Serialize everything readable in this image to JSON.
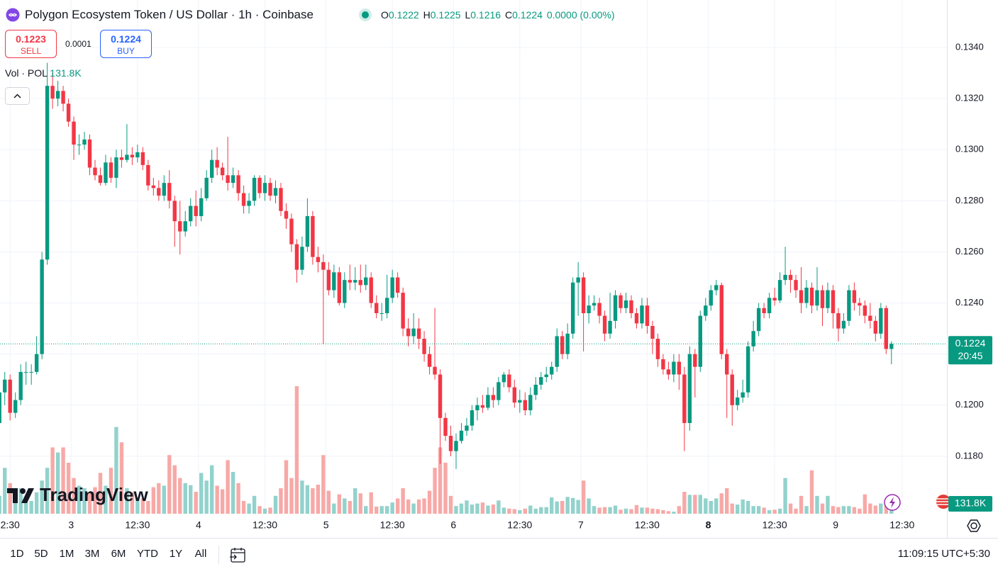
{
  "header": {
    "title": "Polygon Ecosystem Token / US Dollar · 1h · Coinbase",
    "ohlc_letters": [
      "O",
      "H",
      "L",
      "C"
    ],
    "change": "0.0000 (0.00%)"
  },
  "trade": {
    "sell_price": 0.1223,
    "sell_label": "SELL",
    "spread": 0.0001,
    "buy_price": 0.1224,
    "buy_label": "BUY"
  },
  "chart_data": {
    "type": "candlestick",
    "open": [
      0.1193,
      0.1205,
      0.121,
      0.1197,
      0.1202,
      0.1213,
      0.1213,
      0.1213,
      0.122,
      0.1257,
      0.1325,
      0.132,
      0.1323,
      0.1318,
      0.1311,
      0.1302,
      0.1302,
      0.1304,
      0.1293,
      0.129,
      0.1287,
      0.1295,
      0.1289,
      0.1297,
      0.1296,
      0.1298,
      0.1297,
      0.1299,
      0.1294,
      0.1286,
      0.1285,
      0.1282,
      0.1287,
      0.128,
      0.1272,
      0.1268,
      0.1272,
      0.1278,
      0.1274,
      0.1281,
      0.1289,
      0.1296,
      0.1293,
      0.129,
      0.1287,
      0.129,
      0.1283,
      0.1278,
      0.128,
      0.1289,
      0.1283,
      0.1287,
      0.1282,
      0.1285,
      0.1276,
      0.1273,
      0.1263,
      0.1253,
      0.1262,
      0.1274,
      0.1258,
      0.1256,
      0.1253,
      0.1245,
      0.1252,
      0.124,
      0.1249,
      0.1248,
      0.1249,
      0.1247,
      0.125,
      0.124,
      0.1236,
      0.1236,
      0.1242,
      0.125,
      0.1244,
      0.123,
      0.1227,
      0.123,
      0.1226,
      0.122,
      0.1215,
      0.1212,
      0.1195,
      0.1188,
      0.1182,
      0.1186,
      0.119,
      0.1192,
      0.1198,
      0.12,
      0.1199,
      0.1204,
      0.1202,
      0.1209,
      0.1212,
      0.1207,
      0.1201,
      0.1202,
      0.1198,
      0.1204,
      0.1208,
      0.1211,
      0.1212,
      0.1215,
      0.1227,
      0.122,
      0.1228,
      0.1248,
      0.125,
      0.1236,
      0.1239,
      0.124,
      0.1235,
      0.1228,
      0.1233,
      0.1243,
      0.1238,
      0.1241,
      0.1236,
      0.1232,
      0.1239,
      0.1231,
      0.1226,
      0.1218,
      0.1214,
      0.1212,
      0.1217,
      0.1212,
      0.1193,
      0.122,
      0.1215,
      0.1235,
      0.1239,
      0.1245,
      0.1247,
      0.122,
      0.1212,
      0.12,
      0.1203,
      0.1205,
      0.1223,
      0.1229,
      0.1238,
      0.1236,
      0.1242,
      0.1241,
      0.1249,
      0.1251,
      0.1249,
      0.1245,
      0.124,
      0.1246,
      0.1239,
      0.1245,
      0.1238,
      0.1245,
      0.1236,
      0.123,
      0.1233,
      0.1245,
      0.124,
      0.1239,
      0.1235,
      0.1233,
      0.1228,
      0.1238,
      0.1222
    ],
    "high": [
      0.121,
      0.1213,
      0.1212,
      0.1205,
      0.1216,
      0.1217,
      0.1216,
      0.1227,
      0.126,
      0.1334,
      0.133,
      0.1327,
      0.1325,
      0.132,
      0.1313,
      0.1306,
      0.1307,
      0.1306,
      0.1296,
      0.1293,
      0.1298,
      0.1297,
      0.13,
      0.13,
      0.131,
      0.1301,
      0.1302,
      0.1301,
      0.1296,
      0.1289,
      0.1288,
      0.129,
      0.1292,
      0.1282,
      0.128,
      0.1276,
      0.1281,
      0.1284,
      0.1285,
      0.1292,
      0.13,
      0.1301,
      0.1295,
      0.1305,
      0.1293,
      0.1292,
      0.1286,
      0.1283,
      0.129,
      0.129,
      0.129,
      0.1289,
      0.1288,
      0.1287,
      0.1279,
      0.1275,
      0.1265,
      0.1266,
      0.1281,
      0.1276,
      0.1262,
      0.1259,
      0.1256,
      0.1255,
      0.1254,
      0.1252,
      0.1255,
      0.1254,
      0.1255,
      0.1255,
      0.1252,
      0.1243,
      0.124,
      0.1251,
      0.1253,
      0.1252,
      0.1246,
      0.1234,
      0.1236,
      0.1234,
      0.1229,
      0.1223,
      0.1238,
      0.1214,
      0.1197,
      0.1192,
      0.1189,
      0.1193,
      0.1195,
      0.12,
      0.1203,
      0.1204,
      0.1207,
      0.1207,
      0.1211,
      0.1213,
      0.1214,
      0.121,
      0.1206,
      0.1205,
      0.1207,
      0.1211,
      0.1213,
      0.1215,
      0.1217,
      0.123,
      0.1229,
      0.1232,
      0.125,
      0.1256,
      0.1252,
      0.1243,
      0.1243,
      0.1242,
      0.1237,
      0.1244,
      0.1245,
      0.1244,
      0.1244,
      0.1243,
      0.1238,
      0.1242,
      0.1242,
      0.1233,
      0.1228,
      0.122,
      0.1217,
      0.122,
      0.122,
      0.1215,
      0.1223,
      0.1222,
      0.1237,
      0.1242,
      0.1247,
      0.1249,
      0.1248,
      0.1222,
      0.1214,
      0.1206,
      0.121,
      0.1225,
      0.1233,
      0.124,
      0.124,
      0.1244,
      0.1246,
      0.1252,
      0.1262,
      0.1253,
      0.1251,
      0.1254,
      0.1249,
      0.1248,
      0.1254,
      0.1247,
      0.1248,
      0.1247,
      0.1238,
      0.1236,
      0.1247,
      0.1248,
      0.1242,
      0.1241,
      0.124,
      0.1235,
      0.124,
      0.1239,
      0.1225
    ],
    "low": [
      0.1189,
      0.12,
      0.1194,
      0.1195,
      0.12,
      0.1208,
      0.1208,
      0.1212,
      0.1218,
      0.1255,
      0.1316,
      0.1317,
      0.1315,
      0.1309,
      0.1296,
      0.1298,
      0.13,
      0.129,
      0.1288,
      0.1286,
      0.1286,
      0.1287,
      0.1285,
      0.1293,
      0.1295,
      0.1294,
      0.1295,
      0.1292,
      0.1284,
      0.1282,
      0.128,
      0.128,
      0.1277,
      0.1262,
      0.1259,
      0.1266,
      0.127,
      0.127,
      0.1272,
      0.128,
      0.1287,
      0.129,
      0.1288,
      0.1284,
      0.1285,
      0.128,
      0.1275,
      0.1275,
      0.1278,
      0.1281,
      0.128,
      0.128,
      0.1279,
      0.1274,
      0.1269,
      0.126,
      0.1248,
      0.1251,
      0.126,
      0.1255,
      0.1252,
      0.1224,
      0.1243,
      0.1242,
      0.1239,
      0.1238,
      0.1245,
      0.1245,
      0.1244,
      0.1245,
      0.1238,
      0.1234,
      0.1233,
      0.1234,
      0.124,
      0.1242,
      0.1227,
      0.1223,
      0.1224,
      0.1222,
      0.1217,
      0.1212,
      0.121,
      0.1177,
      0.1186,
      0.118,
      0.1175,
      0.1185,
      0.1188,
      0.119,
      0.1194,
      0.1197,
      0.1198,
      0.1199,
      0.12,
      0.1207,
      0.1205,
      0.1199,
      0.1197,
      0.1196,
      0.1196,
      0.1202,
      0.1206,
      0.1209,
      0.121,
      0.1213,
      0.1218,
      0.1218,
      0.1226,
      0.1235,
      0.1221,
      0.1232,
      0.1237,
      0.1232,
      0.1225,
      0.1226,
      0.123,
      0.1236,
      0.1236,
      0.1234,
      0.123,
      0.123,
      0.1228,
      0.122,
      0.1215,
      0.1212,
      0.121,
      0.1209,
      0.1206,
      0.1182,
      0.119,
      0.1203,
      0.1213,
      0.1233,
      0.1237,
      0.1243,
      0.1218,
      0.1195,
      0.1192,
      0.1198,
      0.1201,
      0.1203,
      0.1221,
      0.1227,
      0.1234,
      0.1234,
      0.1239,
      0.124,
      0.1247,
      0.1244,
      0.1242,
      0.1236,
      0.1238,
      0.1236,
      0.1237,
      0.1231,
      0.1236,
      0.123,
      0.1225,
      0.1228,
      0.1231,
      0.1237,
      0.1235,
      0.1232,
      0.123,
      0.1225,
      0.1226,
      0.122,
      0.1216
    ],
    "close": [
      0.1205,
      0.121,
      0.1197,
      0.1202,
      0.1213,
      0.1213,
      0.1213,
      0.122,
      0.1257,
      0.1325,
      0.132,
      0.1323,
      0.1318,
      0.1311,
      0.1302,
      0.1302,
      0.1304,
      0.1293,
      0.129,
      0.1287,
      0.1295,
      0.1289,
      0.1297,
      0.1296,
      0.1298,
      0.1297,
      0.1299,
      0.1294,
      0.1286,
      0.1285,
      0.1282,
      0.1287,
      0.128,
      0.1272,
      0.1268,
      0.1272,
      0.1278,
      0.1274,
      0.1281,
      0.1289,
      0.1296,
      0.1293,
      0.129,
      0.1287,
      0.129,
      0.1283,
      0.1278,
      0.128,
      0.1289,
      0.1283,
      0.1287,
      0.1282,
      0.1285,
      0.1276,
      0.1273,
      0.1263,
      0.1253,
      0.1262,
      0.1274,
      0.1258,
      0.1256,
      0.1253,
      0.1245,
      0.1252,
      0.124,
      0.1249,
      0.1248,
      0.1249,
      0.1247,
      0.125,
      0.124,
      0.1236,
      0.1236,
      0.1242,
      0.125,
      0.1244,
      0.123,
      0.1227,
      0.123,
      0.1226,
      0.122,
      0.1215,
      0.1212,
      0.1195,
      0.1188,
      0.1182,
      0.1186,
      0.119,
      0.1192,
      0.1198,
      0.12,
      0.1199,
      0.1204,
      0.1202,
      0.1209,
      0.1212,
      0.1207,
      0.1201,
      0.1202,
      0.1198,
      0.1204,
      0.1208,
      0.1211,
      0.1212,
      0.1215,
      0.1227,
      0.122,
      0.1228,
      0.1248,
      0.125,
      0.1236,
      0.1239,
      0.124,
      0.1235,
      0.1228,
      0.1233,
      0.1243,
      0.1238,
      0.1241,
      0.1236,
      0.1232,
      0.1239,
      0.1231,
      0.1226,
      0.1218,
      0.1214,
      0.1212,
      0.1217,
      0.1212,
      0.1193,
      0.122,
      0.1215,
      0.1235,
      0.1239,
      0.1245,
      0.1247,
      0.122,
      0.1212,
      0.12,
      0.1203,
      0.1205,
      0.1223,
      0.1229,
      0.1238,
      0.1236,
      0.1242,
      0.1241,
      0.1249,
      0.1251,
      0.1249,
      0.1245,
      0.124,
      0.1246,
      0.1239,
      0.1245,
      0.1238,
      0.1245,
      0.1236,
      0.123,
      0.1233,
      0.1245,
      0.124,
      0.1239,
      0.1235,
      0.1233,
      0.1228,
      0.1238,
      0.1222,
      0.1224
    ],
    "volume": [
      350,
      900,
      600,
      400,
      500,
      300,
      250,
      420,
      650,
      900,
      1300,
      1200,
      1300,
      1000,
      700,
      550,
      500,
      400,
      520,
      800,
      550,
      900,
      1700,
      1400,
      500,
      420,
      320,
      300,
      250,
      520,
      600,
      550,
      1150,
      950,
      700,
      600,
      560,
      430,
      800,
      650,
      950,
      550,
      480,
      1050,
      820,
      600,
      250,
      200,
      350,
      150,
      100,
      120,
      350,
      500,
      1050,
      700,
      2500,
      650,
      560,
      500,
      570,
      1150,
      450,
      200,
      380,
      300,
      250,
      500,
      400,
      150,
      420,
      140,
      150,
      150,
      220,
      300,
      500,
      280,
      200,
      280,
      300,
      450,
      900,
      1300,
      1000,
      350,
      150,
      200,
      260,
      180,
      200,
      220,
      160,
      180,
      260,
      120,
      100,
      90,
      70,
      100,
      160,
      100,
      130,
      130,
      320,
      240,
      250,
      330,
      310,
      270,
      650,
      300,
      150,
      120,
      130,
      130,
      160,
      80,
      100,
      90,
      170,
      120,
      120,
      100,
      90,
      70,
      50,
      40,
      150,
      430,
      370,
      370,
      370,
      300,
      250,
      300,
      400,
      500,
      200,
      180,
      280,
      250,
      150,
      150,
      120,
      70,
      80,
      100,
      700,
      200,
      100,
      350,
      150,
      850,
      350,
      200,
      350,
      150,
      130,
      150,
      150,
      130,
      100,
      380,
      200,
      160,
      200,
      170,
      131.8
    ],
    "volume_legend": "Vol · POL",
    "volume_last_label": "131.8K",
    "countdown": "20:45",
    "watermark": "TradingView",
    "ylim": [
      0.11575,
      0.13586
    ],
    "yticks": [
      {
        "value": 0.118,
        "label": "0.1180"
      },
      {
        "value": 0.12,
        "label": "0.1200"
      },
      {
        "value": 0.122,
        "label": "0.1220"
      },
      {
        "value": 0.124,
        "label": "0.1240"
      },
      {
        "value": 0.126,
        "label": "0.1260"
      },
      {
        "value": 0.128,
        "label": "0.1280"
      },
      {
        "value": 0.13,
        "label": "0.1300"
      },
      {
        "value": 0.132,
        "label": "0.1320"
      },
      {
        "value": 0.134,
        "label": "0.1340"
      }
    ],
    "xlim": [
      0.1,
      178.45
    ],
    "xticks": [
      {
        "value": 2,
        "label": "2:30"
      },
      {
        "value": 13.5,
        "label": "3"
      },
      {
        "value": 26,
        "label": "12:30"
      },
      {
        "value": 37.5,
        "label": "4"
      },
      {
        "value": 50,
        "label": "12:30"
      },
      {
        "value": 61.5,
        "label": "5"
      },
      {
        "value": 74,
        "label": "12:30"
      },
      {
        "value": 85.5,
        "label": "6"
      },
      {
        "value": 98,
        "label": "12:30"
      },
      {
        "value": 109.5,
        "label": "7"
      },
      {
        "value": 122,
        "label": "12:30"
      },
      {
        "value": 133.5,
        "label": "8",
        "bold": true
      },
      {
        "value": 146,
        "label": "12:30"
      },
      {
        "value": 157.5,
        "label": "9"
      },
      {
        "value": 170,
        "label": "12:30"
      }
    ],
    "grid": true,
    "up_color": "#089981",
    "down_color": "#f23645",
    "volume_up_color": "#92d2cc",
    "volume_down_color": "#f7a9a7"
  },
  "toolbar": {
    "ranges": [
      "1D",
      "5D",
      "1M",
      "3M",
      "6M",
      "YTD",
      "1Y",
      "All"
    ],
    "clock": "11:09:15 UTC+5:30"
  }
}
